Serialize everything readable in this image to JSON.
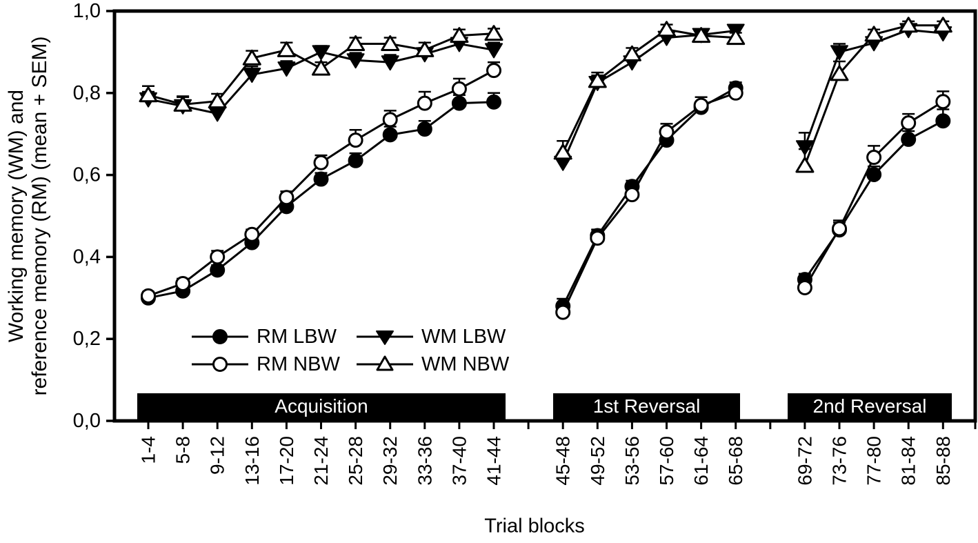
{
  "page": {
    "colors": {
      "foreground": "#000000",
      "background": "#ffffff",
      "phase_bar_bg": "#000000",
      "phase_bar_text": "#ffffff"
    }
  },
  "figure": {
    "y_axis_label_line1": "Working memory (WM) and",
    "y_axis_label_line2": "reference memory (RM) (mean + SEM)",
    "x_axis_label": "Trial blocks"
  },
  "legend": {
    "items": [
      {
        "label": "RM LBW",
        "marker": "filled-circle-icon"
      },
      {
        "label": "RM NBW",
        "marker": "open-circle-icon"
      },
      {
        "label": "WM LBW",
        "marker": "filled-triangle-down-icon"
      },
      {
        "label": "WM NBW",
        "marker": "open-triangle-up-icon"
      }
    ]
  },
  "chart_data": {
    "type": "line",
    "title": "",
    "xlabel": "Trial blocks",
    "ylabel": "Working memory (WM) and reference memory (RM) (mean + SEM)",
    "ylim": [
      0.0,
      1.0
    ],
    "grid": false,
    "legend_position": "inside lower-left",
    "error_bars": "upward SEM with caps",
    "y_ticks": [
      0.0,
      0.2,
      0.4,
      0.6,
      0.8,
      1.0
    ],
    "y_tick_labels": [
      "0,0",
      "0,2",
      "0,4",
      "0,6",
      "0,8",
      "1,0"
    ],
    "phases": [
      {
        "label": "Acquisition",
        "categories": [
          "1-4",
          "5-8",
          "9-12",
          "13-16",
          "17-20",
          "21-24",
          "25-28",
          "29-32",
          "33-36",
          "37-40",
          "41-44"
        ]
      },
      {
        "label": "1st Reversal",
        "categories": [
          "45-48",
          "49-52",
          "53-56",
          "57-60",
          "61-64",
          "65-68"
        ]
      },
      {
        "label": "2nd Reversal",
        "categories": [
          "69-72",
          "73-76",
          "77-80",
          "81-84",
          "85-88"
        ]
      }
    ],
    "series": [
      {
        "name": "RM LBW",
        "marker": "filled-circle",
        "phases": [
          [
            0.3,
            0.317,
            0.368,
            0.435,
            0.523,
            0.59,
            0.635,
            0.698,
            0.712,
            0.775,
            0.778
          ],
          [
            0.28,
            0.452,
            0.572,
            0.685,
            0.765,
            0.812
          ],
          [
            0.345,
            0.466,
            0.601,
            0.687,
            0.732
          ]
        ],
        "sem": [
          [
            0.01,
            0.01,
            0.012,
            0.012,
            0.014,
            0.015,
            0.018,
            0.02,
            0.02,
            0.02,
            0.022
          ],
          [
            0.018,
            0.015,
            0.014,
            0.018,
            0.014,
            0.014
          ],
          [
            0.014,
            0.018,
            0.02,
            0.02,
            0.028
          ]
        ]
      },
      {
        "name": "RM NBW",
        "marker": "open-circle",
        "phases": [
          [
            0.305,
            0.335,
            0.4,
            0.455,
            0.545,
            0.63,
            0.685,
            0.735,
            0.775,
            0.81,
            0.855
          ],
          [
            0.265,
            0.446,
            0.552,
            0.705,
            0.77,
            0.8
          ],
          [
            0.325,
            0.469,
            0.643,
            0.727,
            0.779
          ]
        ],
        "sem": [
          [
            0.01,
            0.012,
            0.015,
            0.012,
            0.015,
            0.018,
            0.025,
            0.022,
            0.028,
            0.025,
            0.02
          ],
          [
            0.022,
            0.02,
            0.018,
            0.02,
            0.02,
            0.018
          ],
          [
            0.018,
            0.02,
            0.028,
            0.022,
            0.025
          ]
        ]
      },
      {
        "name": "WM LBW",
        "marker": "filled-triangle-down",
        "phases": [
          [
            0.785,
            0.768,
            0.75,
            0.845,
            0.86,
            0.9,
            0.88,
            0.875,
            0.895,
            0.92,
            0.905
          ],
          [
            0.63,
            0.825,
            0.875,
            0.935,
            0.942,
            0.952
          ],
          [
            0.668,
            0.9,
            0.922,
            0.954,
            0.946
          ]
        ],
        "sem": [
          [
            0.018,
            0.022,
            0.022,
            0.02,
            0.018,
            0.015,
            0.018,
            0.018,
            0.015,
            0.012,
            0.018
          ],
          [
            0.022,
            0.018,
            0.014,
            0.01,
            0.008,
            0.008
          ],
          [
            0.035,
            0.02,
            0.012,
            0.01,
            0.012
          ]
        ]
      },
      {
        "name": "WM NBW",
        "marker": "open-triangle-up",
        "phases": [
          [
            0.795,
            0.772,
            0.78,
            0.885,
            0.905,
            0.86,
            0.92,
            0.92,
            0.905,
            0.94,
            0.945
          ],
          [
            0.655,
            0.83,
            0.895,
            0.955,
            0.94,
            0.935
          ],
          [
            0.623,
            0.847,
            0.943,
            0.965,
            0.965
          ]
        ],
        "sem": [
          [
            0.022,
            0.02,
            0.018,
            0.018,
            0.018,
            0.015,
            0.015,
            0.015,
            0.018,
            0.015,
            0.012
          ],
          [
            0.028,
            0.02,
            0.015,
            0.012,
            0.01,
            0.012
          ],
          [
            0.04,
            0.03,
            0.012,
            0.01,
            0.01
          ]
        ]
      }
    ]
  }
}
